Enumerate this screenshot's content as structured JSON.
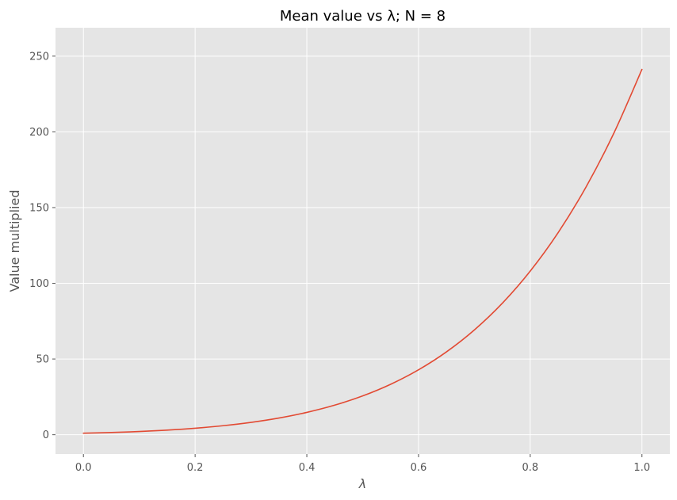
{
  "chart_data": {
    "type": "line",
    "title": "Mean value vs λ; N = 8",
    "xlabel": "λ",
    "ylabel": "Value multiplied",
    "xlim": [
      -0.05,
      1.05
    ],
    "ylim": [
      -12.75,
      268.75
    ],
    "xticks": [
      0.0,
      0.2,
      0.4,
      0.6,
      0.8,
      1.0
    ],
    "xtick_labels": [
      "0.0",
      "0.2",
      "0.4",
      "0.6",
      "0.8",
      "1.0"
    ],
    "yticks": [
      0,
      50,
      100,
      150,
      200,
      250
    ],
    "ytick_labels": [
      "0",
      "50",
      "100",
      "150",
      "200",
      "250"
    ],
    "grid": true,
    "style": "ggplot",
    "colors": {
      "background": "#E5E5E5",
      "grid": "#FFFFFF",
      "line": "#E24A33"
    },
    "series": [
      {
        "x": [
          0.0,
          0.05,
          0.1,
          0.15,
          0.2,
          0.25,
          0.3,
          0.35,
          0.4,
          0.45,
          0.5,
          0.55,
          0.6,
          0.65,
          0.7,
          0.75,
          0.8,
          0.85,
          0.9,
          0.95,
          1.0
        ],
        "values": [
          1.0,
          1.48,
          2.14,
          3.06,
          4.3,
          5.96,
          8.16,
          11.03,
          14.76,
          19.54,
          25.63,
          33.3,
          42.88,
          54.72,
          69.22,
          86.83,
          108.06,
          133.47,
          163.67,
          199.35,
          241.25
        ]
      }
    ]
  }
}
